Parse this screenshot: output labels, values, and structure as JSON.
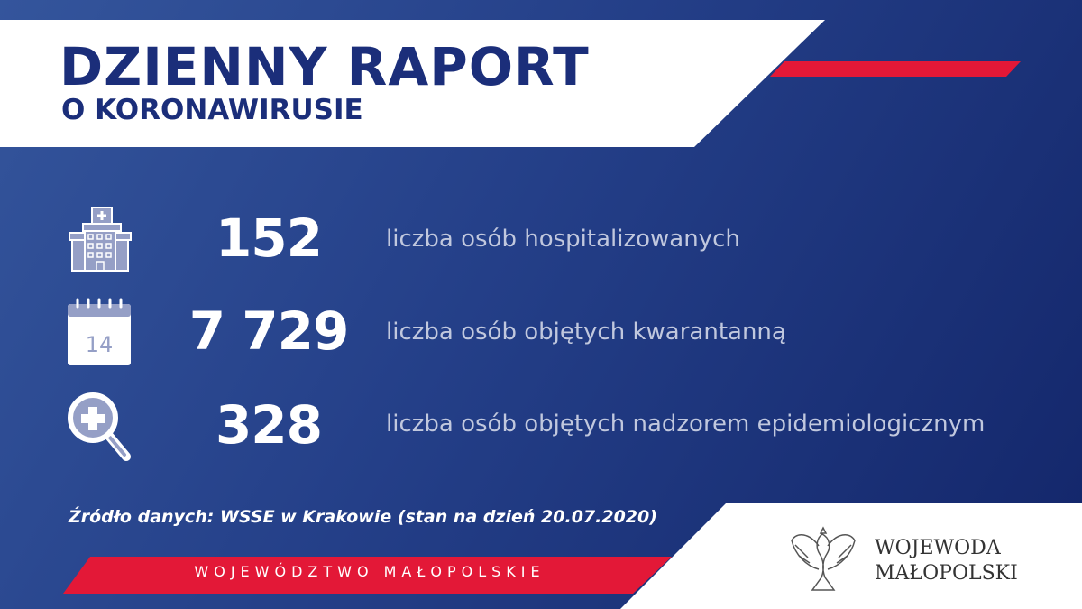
{
  "header": {
    "title": "DZIENNY RAPORT",
    "subtitle": "O KORONAWIRUSIE"
  },
  "stats": [
    {
      "icon": "hospital-icon",
      "value": "152",
      "label": "liczba osób hospitalizowanych"
    },
    {
      "icon": "calendar-icon",
      "calendar_day": "14",
      "value": "7 729",
      "label": "liczba osób objętych kwarantanną"
    },
    {
      "icon": "magnifier-plus-icon",
      "value": "328",
      "label": "liczba osób objętych nadzorem epidemiologicznym"
    }
  ],
  "source": "Źródło danych: WSSE w Krakowie (stan na dzień 20.07.2020)",
  "footer_ribbon": "WOJEWÓDZTWO MAŁOPOLSKIE",
  "logo": {
    "line1": "WOJEWODA",
    "line2": "MAŁOPOLSKI"
  },
  "colors": {
    "navy": "#1b2e7a",
    "red": "#e31837",
    "background": "#243f88",
    "label": "#c1c8de"
  }
}
